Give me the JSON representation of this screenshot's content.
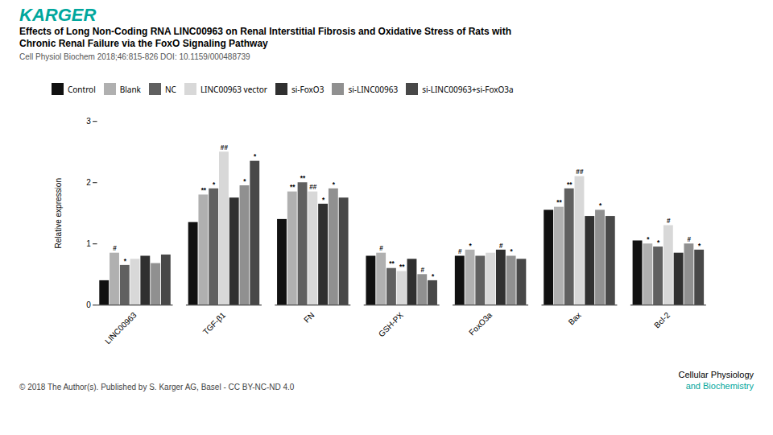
{
  "chart_data": {
    "type": "bar",
    "logo": "KARGER",
    "title": [
      "Effects of Long Non-Coding RNA LINC00963 on Renal Interstitial Fibrosis and Oxidative Stress of Rats with",
      "Chronic Renal Failure via the FoxO Signaling Pathway"
    ],
    "subtitle": "Cell Physiol Biochem 2018;46:815-826   DOI: 10.1159/000488739",
    "ylabel": "Relative expression",
    "categories": [
      "LINC00963",
      "TGF-β1",
      "FN",
      "GSH-PX",
      "FoxO3a",
      "Bax",
      "Bcl-2"
    ],
    "series": [
      {
        "name": "Control",
        "color": "#111111",
        "values": [
          0.4,
          1.35,
          1.4,
          0.8,
          0.8,
          1.55,
          1.05
        ]
      },
      {
        "name": "Blank",
        "color": "#b0b0b0",
        "values": [
          0.85,
          1.8,
          1.85,
          0.85,
          0.9,
          1.6,
          1.0
        ]
      },
      {
        "name": "NC",
        "color": "#606060",
        "values": [
          0.65,
          1.9,
          2.0,
          0.6,
          0.8,
          1.9,
          0.95
        ]
      },
      {
        "name": "LINC00963 vector",
        "color": "#d8d8d8",
        "values": [
          0.75,
          2.5,
          1.85,
          0.55,
          0.85,
          2.1,
          1.3
        ]
      },
      {
        "name": "si-FoxO3",
        "color": "#303030",
        "values": [
          0.8,
          1.75,
          1.65,
          0.75,
          0.9,
          1.45,
          0.85
        ]
      },
      {
        "name": "si-LINC00963",
        "color": "#909090",
        "values": [
          0.68,
          1.95,
          1.9,
          0.5,
          0.8,
          1.55,
          1.0
        ]
      },
      {
        "name": "si-LINC00963+si-FoxO3a",
        "color": "#484848",
        "values": [
          0.82,
          2.35,
          1.75,
          0.4,
          0.75,
          1.45,
          0.9
        ]
      }
    ],
    "ylim": [
      0,
      3
    ],
    "yticks": [
      0,
      1,
      2,
      3
    ],
    "grid": false,
    "legend": "top left",
    "annotations": [
      {
        "category": "LINC00963",
        "series": "Blank",
        "text": "#"
      },
      {
        "category": "LINC00963",
        "series": "NC",
        "text": "*"
      },
      {
        "category": "TGF-β1",
        "series": "Blank",
        "text": "**"
      },
      {
        "category": "TGF-β1",
        "series": "NC",
        "text": "*"
      },
      {
        "category": "TGF-β1",
        "series": "LINC00963 vector",
        "text": "##"
      },
      {
        "category": "TGF-β1",
        "series": "si-LINC00963",
        "text": "*"
      },
      {
        "category": "TGF-β1",
        "series": "si-LINC00963+si-FoxO3a",
        "text": "*"
      },
      {
        "category": "FN",
        "series": "Blank",
        "text": "**"
      },
      {
        "category": "FN",
        "series": "NC",
        "text": "**"
      },
      {
        "category": "FN",
        "series": "LINC00963 vector",
        "text": "##"
      },
      {
        "category": "FN",
        "series": "si-FoxO3",
        "text": "*"
      },
      {
        "category": "FN",
        "series": "si-LINC00963",
        "text": "*"
      },
      {
        "category": "GSH-PX",
        "series": "Blank",
        "text": "#"
      },
      {
        "category": "GSH-PX",
        "series": "NC",
        "text": "**"
      },
      {
        "category": "GSH-PX",
        "series": "LINC00963 vector",
        "text": "**"
      },
      {
        "category": "GSH-PX",
        "series": "si-LINC00963",
        "text": "#"
      },
      {
        "category": "GSH-PX",
        "series": "si-LINC00963+si-FoxO3a",
        "text": "*"
      },
      {
        "category": "FoxO3a",
        "series": "Control",
        "text": "#"
      },
      {
        "category": "FoxO3a",
        "series": "Blank",
        "text": "*"
      },
      {
        "category": "FoxO3a",
        "series": "si-FoxO3",
        "text": "#"
      },
      {
        "category": "FoxO3a",
        "series": "si-LINC00963",
        "text": "*"
      },
      {
        "category": "Bax",
        "series": "Blank",
        "text": "**"
      },
      {
        "category": "Bax",
        "series": "NC",
        "text": "**"
      },
      {
        "category": "Bax",
        "series": "LINC00963 vector",
        "text": "##"
      },
      {
        "category": "Bax",
        "series": "si-LINC00963",
        "text": "*"
      },
      {
        "category": "Bcl-2",
        "series": "Blank",
        "text": "*"
      },
      {
        "category": "Bcl-2",
        "series": "NC",
        "text": "*"
      },
      {
        "category": "Bcl-2",
        "series": "LINC00963 vector",
        "text": "#"
      },
      {
        "category": "Bcl-2",
        "series": "si-LINC00963",
        "text": "#"
      },
      {
        "category": "Bcl-2",
        "series": "si-LINC00963+si-FoxO3a",
        "text": "*"
      }
    ],
    "footer": "© 2018 The Author(s). Published by S. Karger AG, Basel - CC BY-NC-ND 4.0",
    "journal": [
      "Cellular Physiology",
      "and Biochemistry"
    ]
  }
}
